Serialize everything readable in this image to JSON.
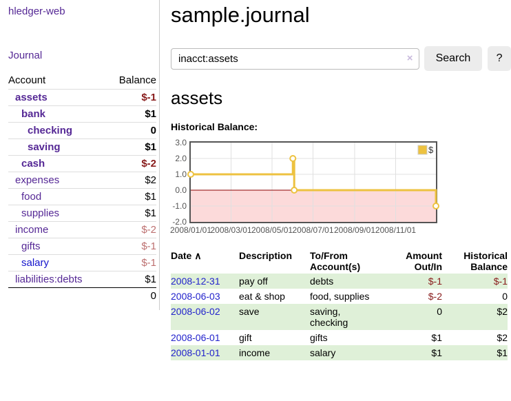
{
  "app": {
    "brand": "hledger-web"
  },
  "sidebar": {
    "journal_link": "Journal",
    "table": {
      "account_header": "Account",
      "balance_header": "Balance"
    },
    "accounts": [
      {
        "name": "assets",
        "depth": 1,
        "bold": true,
        "balance": "$-1",
        "balance_style": "neg",
        "unvisited": false
      },
      {
        "name": "bank",
        "depth": 2,
        "bold": true,
        "balance": "$1",
        "balance_style": "pos",
        "unvisited": false
      },
      {
        "name": "checking",
        "depth": 3,
        "bold": true,
        "balance": "0",
        "balance_style": "pos",
        "unvisited": false
      },
      {
        "name": "saving",
        "depth": 3,
        "bold": true,
        "balance": "$1",
        "balance_style": "pos",
        "unvisited": false
      },
      {
        "name": "cash",
        "depth": 2,
        "bold": true,
        "balance": "$-2",
        "balance_style": "neg",
        "unvisited": false
      },
      {
        "name": "expenses",
        "depth": 1,
        "bold": false,
        "balance": "$2",
        "balance_style": "pos",
        "unvisited": false
      },
      {
        "name": "food",
        "depth": 2,
        "bold": false,
        "balance": "$1",
        "balance_style": "pos",
        "unvisited": false
      },
      {
        "name": "supplies",
        "depth": 2,
        "bold": false,
        "balance": "$1",
        "balance_style": "pos",
        "unvisited": false
      },
      {
        "name": "income",
        "depth": 1,
        "bold": false,
        "balance": "$-2",
        "balance_style": "dimneg",
        "unvisited": false
      },
      {
        "name": "gifts",
        "depth": 2,
        "bold": false,
        "balance": "$-1",
        "balance_style": "dimneg",
        "unvisited": false
      },
      {
        "name": "salary",
        "depth": 2,
        "bold": false,
        "balance": "$-1",
        "balance_style": "dimneg",
        "unvisited": true
      },
      {
        "name": "liabilities:debts",
        "depth": 1,
        "bold": false,
        "balance": "$1",
        "balance_style": "pos",
        "unvisited": false
      }
    ],
    "total": "0"
  },
  "header": {
    "title": "sample.journal"
  },
  "search": {
    "value": "inacct:assets",
    "clear_icon": "×",
    "button_label": "Search",
    "help_label": "?"
  },
  "account_page": {
    "title": "assets",
    "chart_label": "Historical Balance:"
  },
  "chart_data": {
    "type": "line",
    "title": "Historical Balance:",
    "step": true,
    "series": [
      {
        "name": "$",
        "color": "#edc240",
        "points_day_value": [
          [
            0,
            1.0
          ],
          [
            152,
            2.0
          ],
          [
            154,
            0.0
          ],
          [
            365,
            -1.0
          ]
        ]
      }
    ],
    "ylim": [
      -2.0,
      3.0
    ],
    "y_ticks": [
      3.0,
      2.0,
      1.0,
      0.0,
      -1.0,
      -2.0
    ],
    "xlim_days": [
      0,
      365
    ],
    "x_ticks": [
      {
        "day": 0,
        "label": "2008/01/01"
      },
      {
        "day": 60,
        "label": "2008/03/01"
      },
      {
        "day": 121,
        "label": "2008/05/01"
      },
      {
        "day": 182,
        "label": "2008/07/01"
      },
      {
        "day": 244,
        "label": "2008/09/01"
      },
      {
        "day": 305,
        "label": "2008/11/01"
      }
    ],
    "legend": "$",
    "legend_position": "top-right",
    "grid": true,
    "colors": {
      "line": "#edc240",
      "marker_fill": "#ffffff",
      "negative_region": "#fcdada",
      "zero_line": "#8b0000",
      "gridline": "#e0e0e0",
      "border": "#545454",
      "tick_text": "#545454"
    }
  },
  "register": {
    "columns": {
      "date": "Date",
      "sort_icon": "∧",
      "description": "Description",
      "accounts": "To/From Account(s)",
      "amount": "Amount Out/In",
      "balance": "Historical Balance"
    },
    "rows": [
      {
        "date": "2008-12-31",
        "description": "pay off",
        "accounts": "debts",
        "amount": "$-1",
        "amount_neg": true,
        "balance": "$-1",
        "balance_neg": true
      },
      {
        "date": "2008-06-03",
        "description": "eat & shop",
        "accounts": "food, supplies",
        "amount": "$-2",
        "amount_neg": true,
        "balance": "0",
        "balance_neg": false
      },
      {
        "date": "2008-06-02",
        "description": "save",
        "accounts": "saving, checking",
        "amount": "0",
        "amount_neg": false,
        "balance": "$2",
        "balance_neg": false
      },
      {
        "date": "2008-06-01",
        "description": "gift",
        "accounts": "gifts",
        "amount": "$1",
        "amount_neg": false,
        "balance": "$2",
        "balance_neg": false
      },
      {
        "date": "2008-01-01",
        "description": "income",
        "accounts": "salary",
        "amount": "$1",
        "amount_neg": false,
        "balance": "$1",
        "balance_neg": false
      }
    ]
  },
  "colors": {
    "accent_purple": "#552895",
    "link_blue": "#2222cc",
    "negative": "#881b1b",
    "negative_dim": "#bd7070",
    "row_green": "#dff0d8",
    "chart_line": "#edc240"
  }
}
